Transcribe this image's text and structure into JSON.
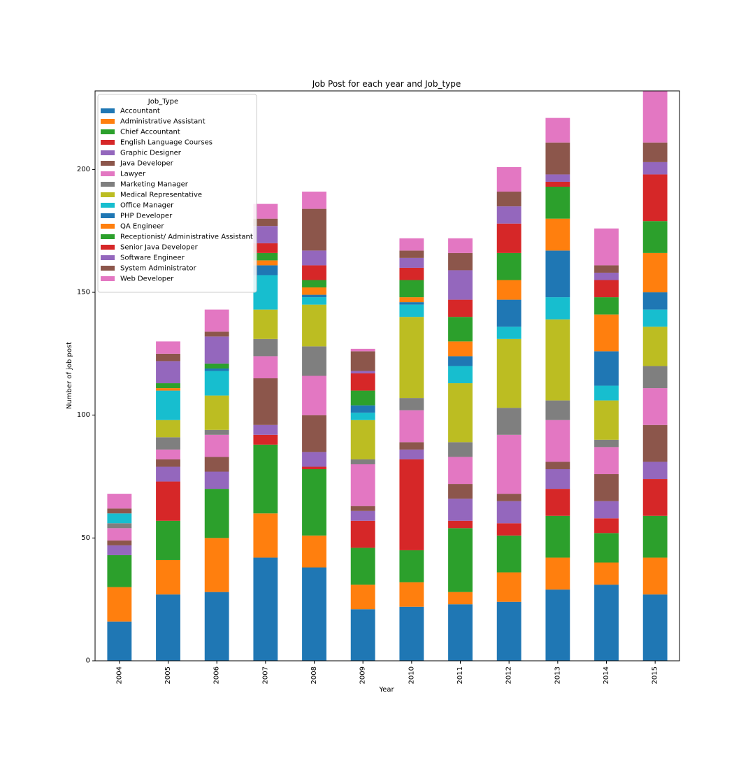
{
  "chart_data": {
    "type": "bar",
    "stacked": true,
    "title": "Job Post for each year and Job_type",
    "xlabel": "Year",
    "ylabel": "Number of job post",
    "ylim": [
      0,
      232
    ],
    "yticks": [
      0,
      50,
      100,
      150,
      200
    ],
    "grid": false,
    "legend": {
      "title": "Job_Type",
      "placement": "top-left"
    },
    "categories": [
      "2004",
      "2005",
      "2006",
      "2007",
      "2008",
      "2009",
      "2010",
      "2011",
      "2012",
      "2013",
      "2014",
      "2015"
    ],
    "series": [
      {
        "name": "Accountant",
        "color": "#1f77b4",
        "values": [
          16,
          27,
          28,
          42,
          38,
          21,
          22,
          23,
          24,
          29,
          31,
          27
        ]
      },
      {
        "name": "Administrative Assistant",
        "color": "#ff7f0e",
        "values": [
          14,
          14,
          22,
          18,
          13,
          10,
          10,
          5,
          12,
          13,
          9,
          15
        ]
      },
      {
        "name": "Chief Accountant",
        "color": "#2ca02c",
        "values": [
          13,
          16,
          20,
          28,
          27,
          15,
          13,
          26,
          15,
          17,
          12,
          17
        ]
      },
      {
        "name": "English Language Courses",
        "color": "#d62728",
        "values": [
          0,
          16,
          0,
          4,
          1,
          11,
          37,
          3,
          5,
          11,
          6,
          15
        ]
      },
      {
        "name": "Graphic Designer",
        "color": "#9467bd",
        "values": [
          4,
          6,
          7,
          4,
          6,
          4,
          4,
          9,
          9,
          8,
          7,
          7
        ]
      },
      {
        "name": "Java Developer",
        "color": "#8c564b",
        "values": [
          2,
          3,
          6,
          19,
          15,
          2,
          3,
          6,
          3,
          3,
          11,
          15
        ]
      },
      {
        "name": "Lawyer",
        "color": "#e377c2",
        "values": [
          5,
          4,
          9,
          9,
          16,
          17,
          13,
          11,
          24,
          17,
          11,
          15
        ]
      },
      {
        "name": "Marketing Manager",
        "color": "#7f7f7f",
        "values": [
          2,
          5,
          2,
          7,
          12,
          2,
          5,
          6,
          11,
          8,
          3,
          9
        ]
      },
      {
        "name": "Medical Representative",
        "color": "#bcbd22",
        "values": [
          0,
          7,
          14,
          12,
          17,
          16,
          33,
          24,
          28,
          33,
          16,
          16
        ]
      },
      {
        "name": "Office Manager",
        "color": "#17becf",
        "values": [
          4,
          12,
          10,
          14,
          3,
          3,
          5,
          7,
          5,
          9,
          6,
          7
        ]
      },
      {
        "name": "PHP Developer",
        "color": "#1f77b4",
        "values": [
          0,
          0,
          1,
          4,
          1,
          3,
          1,
          4,
          11,
          19,
          14,
          7
        ]
      },
      {
        "name": "QA Engineer",
        "color": "#ff7f0e",
        "values": [
          0,
          1,
          0,
          2,
          3,
          0,
          2,
          6,
          8,
          13,
          15,
          16
        ]
      },
      {
        "name": "Receptionist/ Administrative Assistant",
        "color": "#2ca02c",
        "values": [
          0,
          2,
          2,
          3,
          3,
          6,
          7,
          10,
          11,
          13,
          7,
          13
        ]
      },
      {
        "name": "Senior Java Developer",
        "color": "#d62728",
        "values": [
          0,
          0,
          0,
          4,
          6,
          7,
          5,
          7,
          12,
          2,
          7,
          19
        ]
      },
      {
        "name": "Software Engineer",
        "color": "#9467bd",
        "values": [
          0,
          9,
          11,
          7,
          6,
          1,
          4,
          12,
          7,
          3,
          3,
          5
        ]
      },
      {
        "name": "System Administrator",
        "color": "#8c564b",
        "values": [
          2,
          3,
          2,
          3,
          17,
          8,
          3,
          7,
          6,
          13,
          3,
          8
        ]
      },
      {
        "name": "Web Developer",
        "color": "#e377c2",
        "values": [
          6,
          5,
          9,
          6,
          7,
          1,
          5,
          6,
          10,
          10,
          15,
          21
        ]
      }
    ]
  }
}
